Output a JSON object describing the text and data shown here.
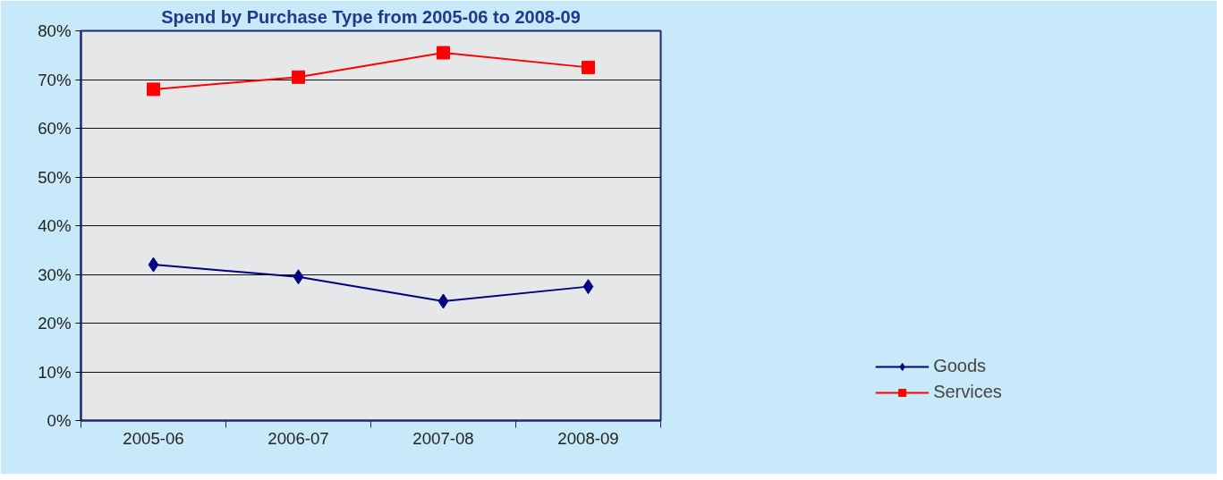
{
  "chart_data": {
    "type": "line",
    "title": "Spend by Purchase Type from 2005-06 to 2008-09",
    "categories": [
      "2005-06",
      "2006-07",
      "2007-08",
      "2008-09"
    ],
    "series": [
      {
        "name": "Goods",
        "color": "#000080",
        "values": [
          32,
          29.5,
          24.5,
          27.5
        ],
        "marker": "diamond"
      },
      {
        "name": "Services",
        "color": "#ff0000",
        "values": [
          68,
          70.5,
          75.5,
          72.5
        ],
        "marker": "square"
      }
    ],
    "ylim": [
      0,
      80
    ],
    "yticks": [
      {
        "value": 0,
        "label": "0%"
      },
      {
        "value": 10,
        "label": "10%"
      },
      {
        "value": 20,
        "label": "20%"
      },
      {
        "value": 30,
        "label": "30%"
      },
      {
        "value": 40,
        "label": "40%"
      },
      {
        "value": 50,
        "label": "50%"
      },
      {
        "value": 60,
        "label": "60%"
      },
      {
        "value": 70,
        "label": "70%"
      },
      {
        "value": 80,
        "label": "80%"
      }
    ],
    "grid": "y",
    "legend": "right",
    "line_style": "solid"
  }
}
